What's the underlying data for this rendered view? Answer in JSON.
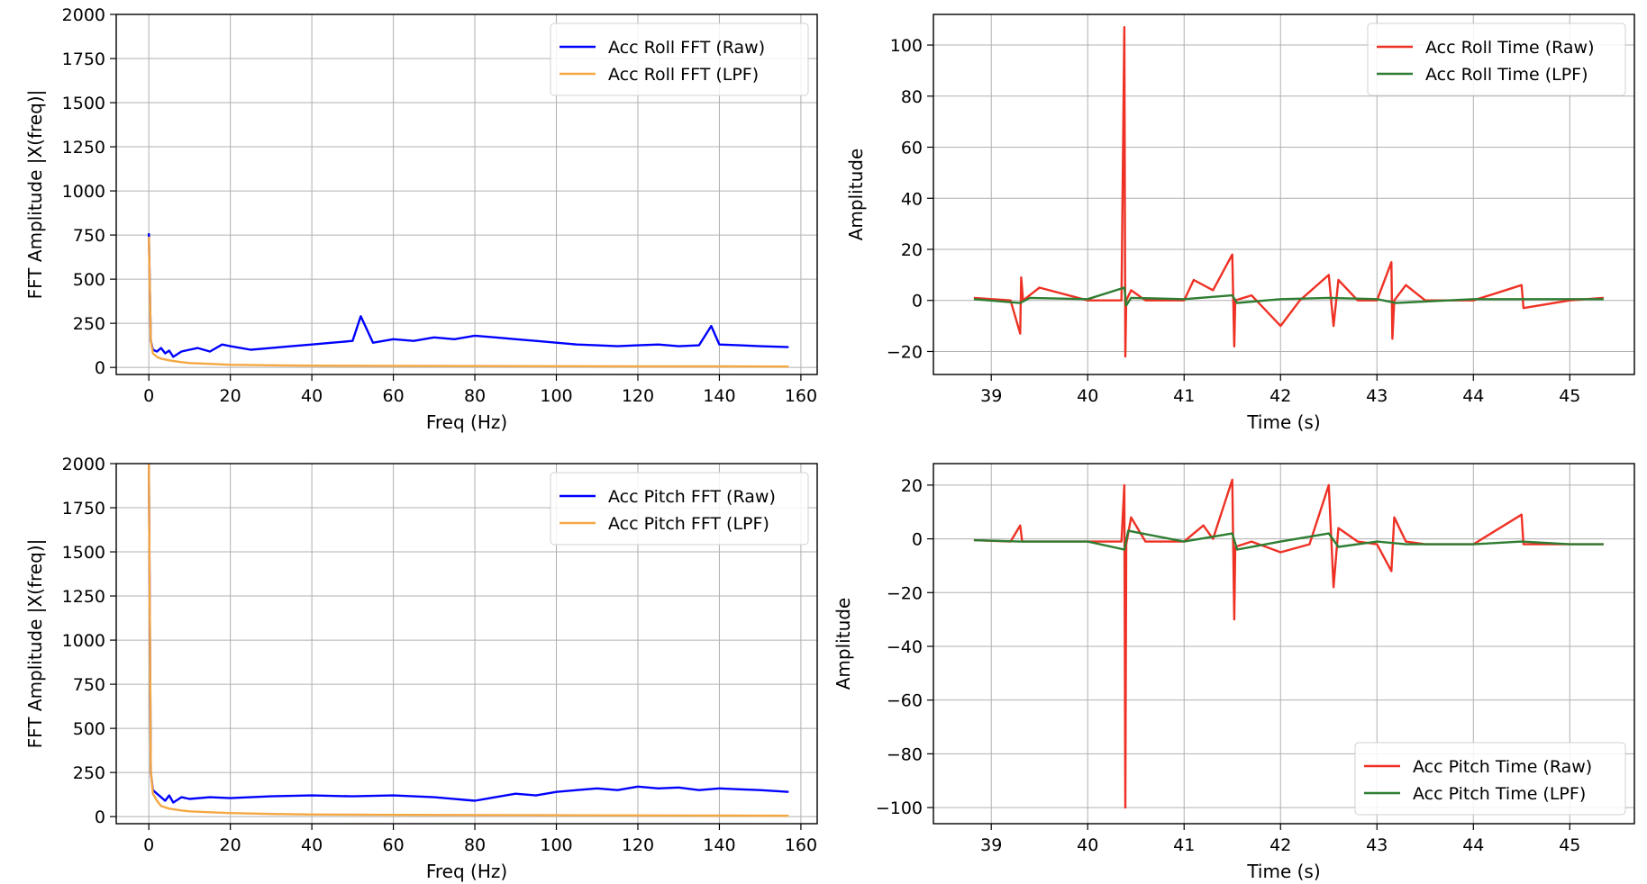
{
  "chart_data": [
    {
      "id": "roll-fft",
      "type": "line",
      "xlabel": "Freq (Hz)",
      "ylabel": "FFT Amplitude |X(freq)|",
      "xlim": [
        -8,
        164
      ],
      "ylim": [
        -40,
        2000
      ],
      "xticks": [
        0,
        20,
        40,
        60,
        80,
        100,
        120,
        140,
        160
      ],
      "yticks": [
        0,
        250,
        500,
        750,
        1000,
        1250,
        1500,
        1750,
        2000
      ],
      "grid": true,
      "legend_position": "top-right",
      "series": [
        {
          "name": "Acc Roll FFT (Raw)",
          "color": "#0000ff",
          "x": [
            0,
            0.5,
            1,
            2,
            3,
            4,
            5,
            6,
            8,
            10,
            12,
            15,
            18,
            20,
            25,
            30,
            35,
            40,
            45,
            50,
            52,
            55,
            60,
            65,
            70,
            75,
            80,
            85,
            90,
            95,
            100,
            105,
            110,
            115,
            120,
            125,
            130,
            135,
            138,
            140,
            145,
            150,
            157
          ],
          "y": [
            760,
            150,
            100,
            90,
            110,
            80,
            95,
            60,
            90,
            100,
            110,
            90,
            130,
            120,
            100,
            110,
            120,
            130,
            140,
            150,
            290,
            140,
            160,
            150,
            170,
            160,
            180,
            170,
            160,
            150,
            140,
            130,
            125,
            120,
            125,
            130,
            120,
            125,
            235,
            130,
            125,
            120,
            115
          ]
        },
        {
          "name": "Acc Roll FFT (LPF)",
          "color": "#f5a742",
          "x": [
            0,
            0.5,
            1,
            2,
            3,
            5,
            8,
            10,
            15,
            20,
            30,
            40,
            60,
            80,
            100,
            120,
            140,
            157
          ],
          "y": [
            740,
            150,
            80,
            60,
            50,
            40,
            30,
            25,
            20,
            15,
            12,
            10,
            9,
            8,
            7,
            6,
            6,
            5
          ]
        }
      ]
    },
    {
      "id": "roll-time",
      "type": "line",
      "xlabel": "Time (s)",
      "ylabel": "Amplitude",
      "xlim": [
        38.4,
        45.67
      ],
      "ylim": [
        -29,
        112
      ],
      "xticks": [
        39,
        40,
        41,
        42,
        43,
        44,
        45
      ],
      "yticks": [
        -20,
        0,
        20,
        40,
        60,
        80,
        100
      ],
      "grid": true,
      "legend_position": "top-right",
      "series": [
        {
          "name": "Acc Roll Time (Raw)",
          "color": "#ee3124",
          "x": [
            38.82,
            39.2,
            39.3,
            39.31,
            39.33,
            39.5,
            40.0,
            40.35,
            40.38,
            40.39,
            40.4,
            40.45,
            40.6,
            41.0,
            41.1,
            41.3,
            41.5,
            41.52,
            41.53,
            41.7,
            42.0,
            42.2,
            42.5,
            42.55,
            42.6,
            42.8,
            43.0,
            43.15,
            43.16,
            43.18,
            43.3,
            43.5,
            44.0,
            44.5,
            44.52,
            45.0,
            45.35
          ],
          "y": [
            1,
            0,
            -13,
            9,
            0,
            5,
            0,
            0,
            107,
            -22,
            0,
            4,
            0,
            0,
            8,
            4,
            18,
            -18,
            0,
            2,
            -10,
            0,
            10,
            -10,
            8,
            0,
            0,
            15,
            -15,
            0,
            6,
            0,
            0,
            6,
            -3,
            0,
            1
          ]
        },
        {
          "name": "Acc Roll Time (LPF)",
          "color": "#2e7d32",
          "x": [
            38.82,
            39.3,
            39.4,
            40.0,
            40.38,
            40.4,
            40.45,
            41.0,
            41.5,
            41.55,
            42.0,
            42.5,
            43.0,
            43.2,
            44.0,
            44.5,
            45.0,
            45.35
          ],
          "y": [
            0.5,
            -1,
            1,
            0.5,
            5,
            -2,
            1,
            0.5,
            2,
            -1,
            0.5,
            1,
            0.5,
            -1,
            0.5,
            0.5,
            0.5,
            0.5
          ]
        }
      ]
    },
    {
      "id": "pitch-fft",
      "type": "line",
      "xlabel": "Freq (Hz)",
      "ylabel": "FFT Amplitude |X(freq)|",
      "xlim": [
        -8,
        164
      ],
      "ylim": [
        -40,
        2000
      ],
      "xticks": [
        0,
        20,
        40,
        60,
        80,
        100,
        120,
        140,
        160
      ],
      "yticks": [
        0,
        250,
        500,
        750,
        1000,
        1250,
        1500,
        1750,
        2000
      ],
      "grid": true,
      "legend_position": "top-right",
      "series": [
        {
          "name": "Acc Pitch FFT (Raw)",
          "color": "#0000ff",
          "x": [
            0,
            0.5,
            1,
            2,
            3,
            4,
            5,
            6,
            8,
            10,
            15,
            20,
            25,
            30,
            40,
            50,
            60,
            70,
            80,
            85,
            90,
            95,
            100,
            105,
            110,
            115,
            120,
            125,
            130,
            135,
            140,
            145,
            150,
            157
          ],
          "y": [
            2000,
            250,
            150,
            130,
            110,
            90,
            120,
            80,
            110,
            100,
            110,
            105,
            110,
            115,
            120,
            115,
            120,
            110,
            90,
            110,
            130,
            120,
            140,
            150,
            160,
            150,
            170,
            160,
            165,
            150,
            160,
            155,
            150,
            140
          ]
        },
        {
          "name": "Acc Pitch FFT (LPF)",
          "color": "#f5a742",
          "x": [
            0,
            0.5,
            1,
            2,
            3,
            5,
            8,
            10,
            15,
            20,
            30,
            40,
            60,
            80,
            100,
            120,
            140,
            157
          ],
          "y": [
            2000,
            260,
            130,
            90,
            60,
            45,
            35,
            30,
            25,
            20,
            15,
            12,
            10,
            9,
            8,
            7,
            6,
            5
          ]
        }
      ]
    },
    {
      "id": "pitch-time",
      "type": "line",
      "xlabel": "Time (s)",
      "ylabel": "Amplitude",
      "xlim": [
        38.4,
        45.67
      ],
      "ylim": [
        -106,
        28
      ],
      "xticks": [
        39,
        40,
        41,
        42,
        43,
        44,
        45
      ],
      "yticks": [
        -100,
        -80,
        -60,
        -40,
        -20,
        0,
        20
      ],
      "grid": true,
      "legend_position": "bottom-right",
      "series": [
        {
          "name": "Acc Pitch Time (Raw)",
          "color": "#ee3124",
          "x": [
            38.82,
            39.2,
            39.3,
            39.32,
            40.0,
            40.35,
            40.38,
            40.39,
            40.4,
            40.45,
            40.6,
            41.0,
            41.2,
            41.3,
            41.5,
            41.52,
            41.53,
            41.7,
            42.0,
            42.3,
            42.5,
            42.55,
            42.6,
            42.8,
            43.0,
            43.15,
            43.18,
            43.3,
            43.5,
            44.0,
            44.5,
            44.52,
            45.0,
            45.35
          ],
          "y": [
            -0.5,
            -1,
            5,
            -1,
            -1,
            -1,
            20,
            -100,
            -2,
            8,
            -1,
            -1,
            5,
            0,
            22,
            -30,
            -3,
            -1,
            -5,
            -2,
            20,
            -18,
            4,
            -1,
            -2,
            -12,
            8,
            -1,
            -2,
            -2,
            9,
            -2,
            -2,
            -2
          ]
        },
        {
          "name": "Acc Pitch Time (LPF)",
          "color": "#2e7d32",
          "x": [
            38.82,
            39.3,
            40.0,
            40.38,
            40.42,
            41.0,
            41.5,
            41.55,
            42.0,
            42.5,
            42.6,
            43.0,
            43.3,
            44.0,
            44.5,
            45.0,
            45.35
          ],
          "y": [
            -0.5,
            -1,
            -1,
            -4,
            3,
            -1,
            2,
            -4,
            -1,
            2,
            -3,
            -1,
            -2,
            -2,
            -1,
            -2,
            -2
          ]
        }
      ]
    }
  ]
}
